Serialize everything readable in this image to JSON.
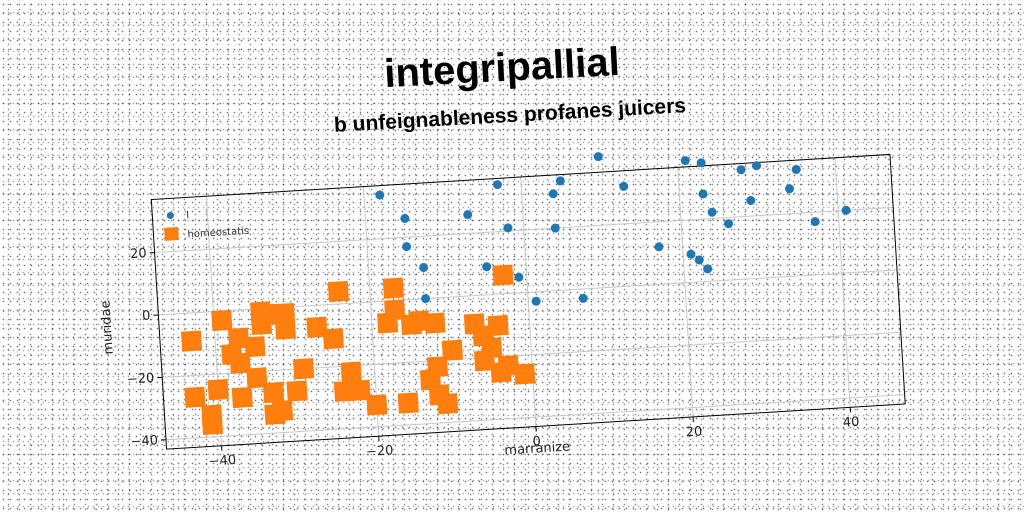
{
  "title": "integripallial",
  "chart_data": {
    "type": "scatter",
    "title": "b unfeignableness profanes juicers",
    "xlabel": "marranize",
    "ylabel": "muridae",
    "xlim": [
      -47,
      47
    ],
    "ylim": [
      -43,
      37
    ],
    "xticks": [
      -40,
      -20,
      0,
      20,
      40
    ],
    "yticks": [
      -40,
      -20,
      0,
      20
    ],
    "grid": true,
    "legend_position": "top-left",
    "series": [
      {
        "name": "l",
        "color": "#1f77b4",
        "marker": "circle",
        "points": [
          [
            -18,
            34
          ],
          [
            -15,
            26
          ],
          [
            -15,
            17
          ],
          [
            -13,
            10
          ],
          [
            -13,
            0
          ],
          [
            -7,
            26
          ],
          [
            -5,
            9
          ],
          [
            -3,
            35
          ],
          [
            -2,
            21
          ],
          [
            -1,
            5
          ],
          [
            1,
            -3
          ],
          [
            4,
            20
          ],
          [
            4,
            31
          ],
          [
            5,
            35
          ],
          [
            7,
            -3
          ],
          [
            10,
            42
          ],
          [
            13,
            32
          ],
          [
            17,
            12
          ],
          [
            21,
            39
          ],
          [
            21,
            9
          ],
          [
            22,
            7
          ],
          [
            23,
            4
          ],
          [
            23,
            38
          ],
          [
            23,
            28
          ],
          [
            24,
            22
          ],
          [
            26,
            18
          ],
          [
            28,
            35
          ],
          [
            29,
            25
          ],
          [
            30,
            36
          ],
          [
            34,
            28
          ],
          [
            35,
            34
          ],
          [
            37,
            17
          ],
          [
            41,
            20
          ]
        ]
      },
      {
        "name": "homeostatis",
        "color": "#ff7f0e",
        "marker": "square",
        "points": [
          [
            -43,
            -9
          ],
          [
            -43,
            -27
          ],
          [
            -41,
            -33
          ],
          [
            -41,
            -36
          ],
          [
            -40,
            -25
          ],
          [
            -39,
            -3
          ],
          [
            -38,
            -14
          ],
          [
            -37,
            -9
          ],
          [
            -37,
            -28
          ],
          [
            -37,
            -17
          ],
          [
            -35,
            -12
          ],
          [
            -35,
            -22
          ],
          [
            -34,
            -1
          ],
          [
            -34,
            -5
          ],
          [
            -33,
            -2
          ],
          [
            -33,
            -27
          ],
          [
            -33,
            -34
          ],
          [
            -32,
            -33
          ],
          [
            -31,
            -2
          ],
          [
            -31,
            -7
          ],
          [
            -30,
            -27
          ],
          [
            -29,
            -20
          ],
          [
            -27,
            -7
          ],
          [
            -25,
            -11
          ],
          [
            -24,
            4
          ],
          [
            -24,
            -28
          ],
          [
            -23,
            -22
          ],
          [
            -22,
            -28
          ],
          [
            -20,
            -33
          ],
          [
            -18,
            -7
          ],
          [
            -17,
            4
          ],
          [
            -17,
            -3
          ],
          [
            -16,
            -33
          ],
          [
            -15,
            -8
          ],
          [
            -14,
            -7
          ],
          [
            -13,
            -26
          ],
          [
            -12,
            -31
          ],
          [
            -12,
            -8
          ],
          [
            -12,
            -22
          ],
          [
            -11,
            -34
          ],
          [
            -10,
            -17
          ],
          [
            -7,
            -9
          ],
          [
            -6,
            -21
          ],
          [
            -6,
            -13
          ],
          [
            -5,
            -17
          ],
          [
            -4,
            -10
          ],
          [
            -4,
            -25
          ],
          [
            -3,
            -23
          ],
          [
            -3,
            6
          ],
          [
            -1,
            -26
          ]
        ]
      }
    ]
  }
}
